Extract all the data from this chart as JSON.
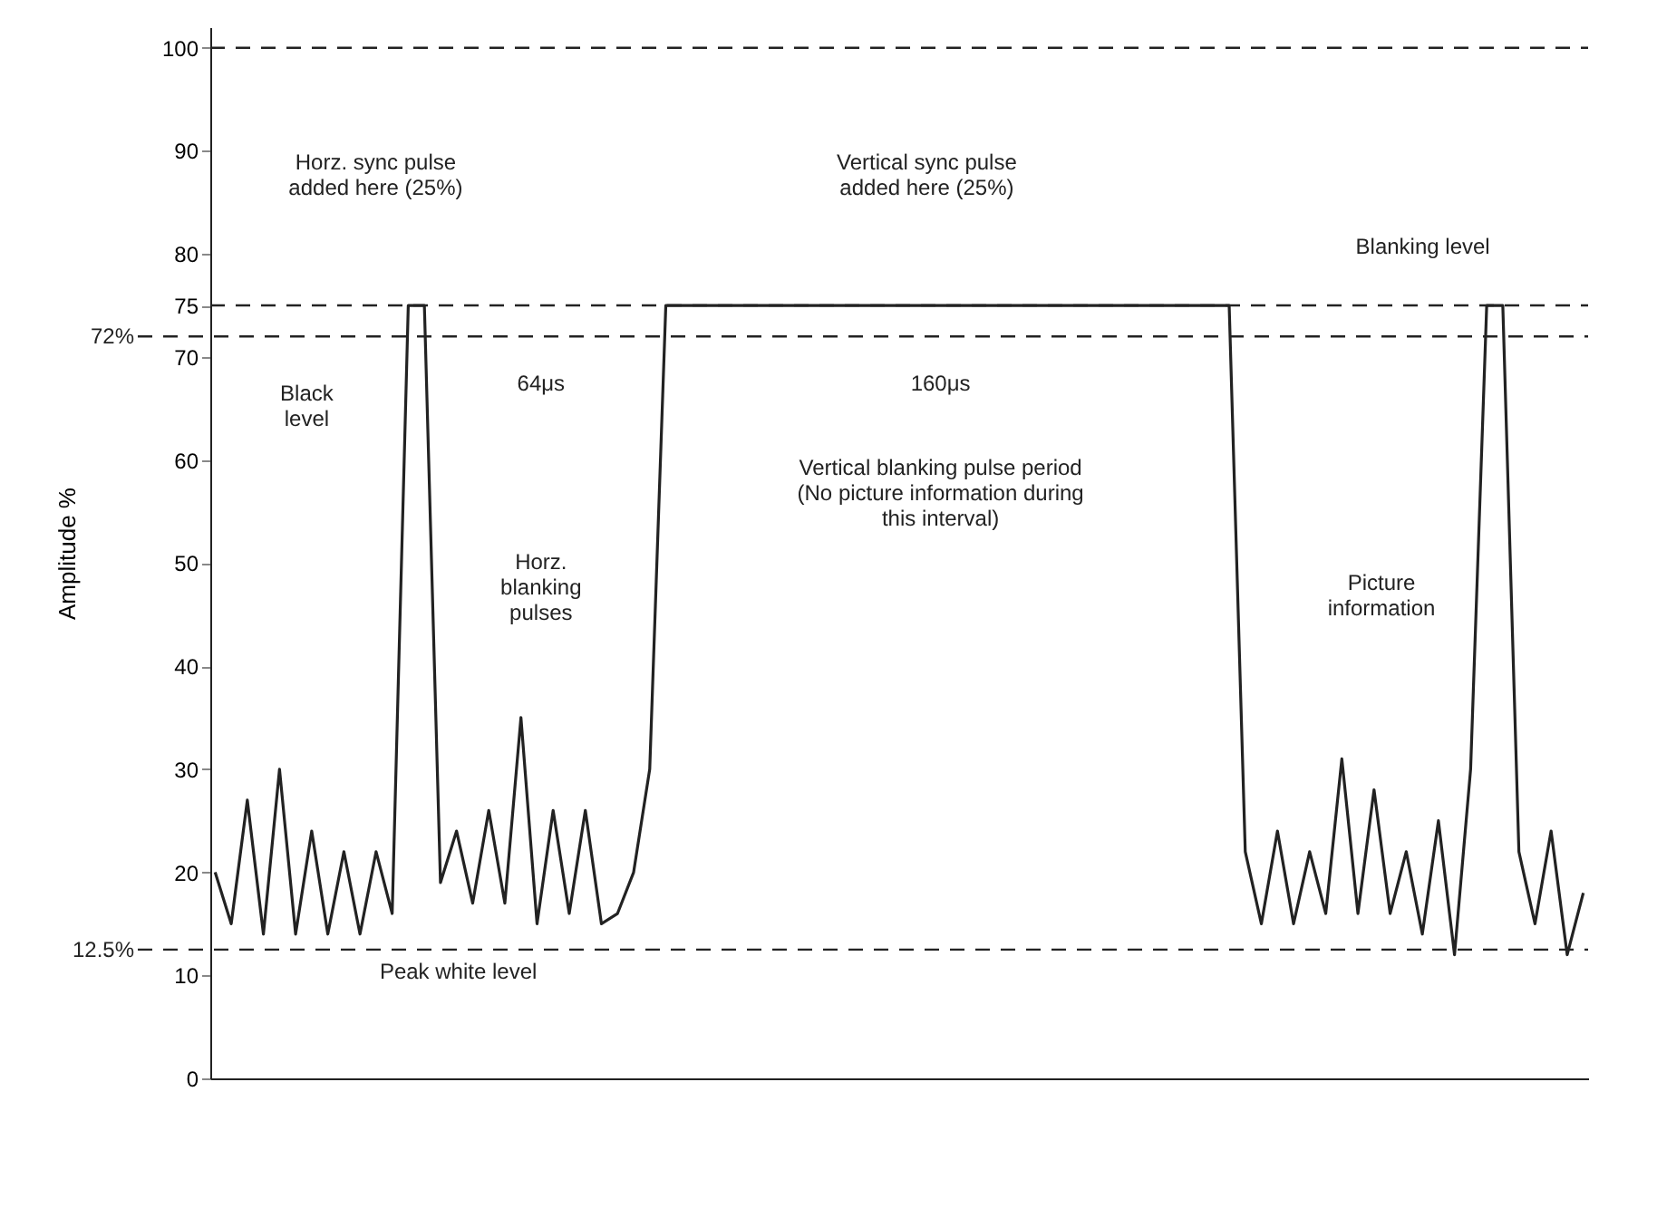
{
  "chart_data": {
    "type": "line",
    "ylabel": "Amplitude %",
    "categories": [
      null,
      null,
      null,
      null,
      null,
      null,
      null,
      null,
      null,
      null,
      null,
      null,
      null,
      null,
      null,
      null,
      null,
      null,
      null,
      null,
      null,
      null,
      null,
      null,
      null,
      null,
      null,
      null,
      null,
      null,
      null,
      null,
      null,
      null,
      null,
      null,
      null,
      null,
      null,
      null,
      null,
      null,
      null,
      null,
      null,
      null,
      null,
      null,
      null,
      null,
      null,
      null,
      null,
      null,
      null,
      null,
      null,
      null,
      null,
      null,
      null,
      null,
      null,
      null,
      null,
      null,
      null,
      null,
      null,
      null,
      null,
      null,
      null,
      null,
      null,
      null,
      null,
      null,
      null,
      null,
      null,
      null,
      null,
      null,
      null,
      null
    ],
    "series": [
      {
        "color": "#222222",
        "values": [
          20,
          15,
          27,
          14,
          30,
          14,
          24,
          14,
          22,
          14,
          22,
          16,
          75,
          75,
          19,
          24,
          17,
          26,
          17,
          35,
          15,
          26,
          16,
          26,
          15,
          16,
          20,
          30,
          75,
          75,
          75,
          75,
          75,
          75,
          75,
          75,
          75,
          75,
          75,
          75,
          75,
          75,
          75,
          75,
          75,
          75,
          75,
          75,
          75,
          75,
          75,
          75,
          75,
          75,
          75,
          75,
          75,
          75,
          75,
          75,
          75,
          75,
          75,
          75,
          22,
          15,
          24,
          15,
          22,
          16,
          31,
          16,
          28,
          16,
          22,
          14,
          25,
          12,
          30,
          75,
          75,
          22,
          15,
          24,
          12,
          18
        ]
      }
    ],
    "ylim": [
      0,
      102
    ],
    "yticks": [
      0,
      10,
      20,
      30,
      40,
      50,
      60,
      70,
      75,
      80,
      90,
      100
    ],
    "tick_labels": "y",
    "grid": false,
    "line_style": "solid",
    "marker": "none",
    "ref_lines": [
      {
        "axis": "y",
        "value": 100,
        "label": null,
        "line_style": "dashed"
      },
      {
        "axis": "y",
        "value": 75,
        "label": null,
        "line_style": "dashed"
      },
      {
        "axis": "y",
        "value": 72,
        "label": "72%",
        "line_style": "dashed"
      },
      {
        "axis": "y",
        "value": 12.5,
        "label": "12.5%",
        "line_style": "dashed"
      }
    ],
    "annotations": [
      "Horz. sync pulse\nadded here (25%)",
      "Vertical sync pulse\nadded here (25%)",
      "Blanking level",
      "Black\nlevel",
      "64μs",
      "160μs",
      "Vertical blanking pulse period\n(No picture information during\nthis interval)",
      "Horz.\nblanking\npulses",
      "Picture\ninformation",
      "Peak white level"
    ]
  }
}
